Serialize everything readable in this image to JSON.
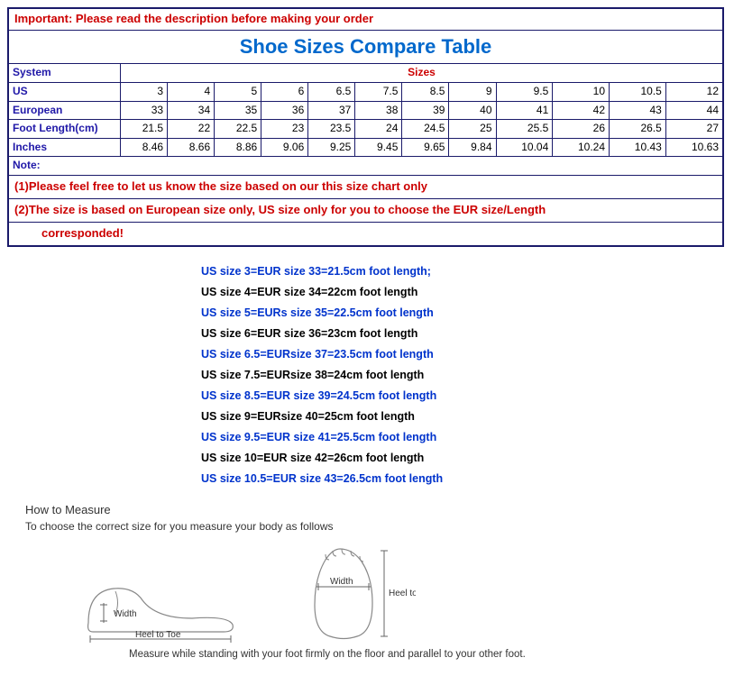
{
  "table": {
    "important": "Important: Please read the description before making your order",
    "title": "Shoe Sizes Compare Table",
    "system_label": "System",
    "sizes_label": "Sizes",
    "rows": {
      "us": {
        "label": "US",
        "vals": [
          "3",
          "4",
          "5",
          "6",
          "6.5",
          "7.5",
          "8.5",
          "9",
          "9.5",
          "10",
          "10.5",
          "12"
        ]
      },
      "eur": {
        "label": "European",
        "vals": [
          "33",
          "34",
          "35",
          "36",
          "37",
          "38",
          "39",
          "40",
          "41",
          "42",
          "43",
          "44"
        ]
      },
      "footlen": {
        "label": "Foot Length(cm)",
        "vals": [
          "21.5",
          "22",
          "22.5",
          "23",
          "23.5",
          "24",
          "24.5",
          "25",
          "25.5",
          "26",
          "26.5",
          "27"
        ]
      },
      "inches": {
        "label": "Inches",
        "vals": [
          "8.46",
          "8.66",
          "8.86",
          "9.06",
          "9.25",
          "9.45",
          "9.65",
          "9.84",
          "10.04",
          "10.24",
          "10.43",
          "10.63"
        ]
      }
    },
    "note_label": "Note:",
    "note1": "(1)Please feel free to let us know the size based on our this size chart only",
    "note2a": "(2)The size is based on European size only, US size only for you to choose the EUR size/Length",
    "note2b": "corresponded!"
  },
  "conversions": [
    {
      "text": "US size 3=EUR size 33=21.5cm foot length;",
      "color": "blue"
    },
    {
      "text": "US size 4=EUR size 34=22cm foot length",
      "color": "black"
    },
    {
      "text": "US size 5=EURs size 35=22.5cm foot length",
      "color": "blue"
    },
    {
      "text": "US size 6=EUR size 36=23cm foot length",
      "color": "black"
    },
    {
      "text": "US size 6.5=EURsize 37=23.5cm foot length",
      "color": "blue"
    },
    {
      "text": "US size 7.5=EURsize 38=24cm foot length",
      "color": "black"
    },
    {
      "text": "US size 8.5=EUR size 39=24.5cm foot length",
      "color": "blue"
    },
    {
      "text": "US size 9=EURsize 40=25cm foot length",
      "color": "black"
    },
    {
      "text": "US size 9.5=EUR size 41=25.5cm foot length",
      "color": "blue"
    },
    {
      "text": "US size 10=EUR size 42=26cm foot length",
      "color": "black"
    },
    {
      "text": "US size 10.5=EUR size 43=26.5cm foot length",
      "color": "blue"
    }
  ],
  "measure": {
    "title": "How to Measure",
    "sub": "To choose the correct size for you measure your body as follows",
    "caption": "Measure while standing with your foot firmly on the floor and parallel to your other foot.",
    "labels": {
      "width": "Width",
      "heel_to_toe": "Heel to Toe"
    }
  },
  "style": {
    "border_color": "#1a1a6a",
    "warn_color": "#cc0000",
    "title_color": "#0068cc",
    "label_color": "#2018a8",
    "conv_blue": "#0033cc"
  }
}
